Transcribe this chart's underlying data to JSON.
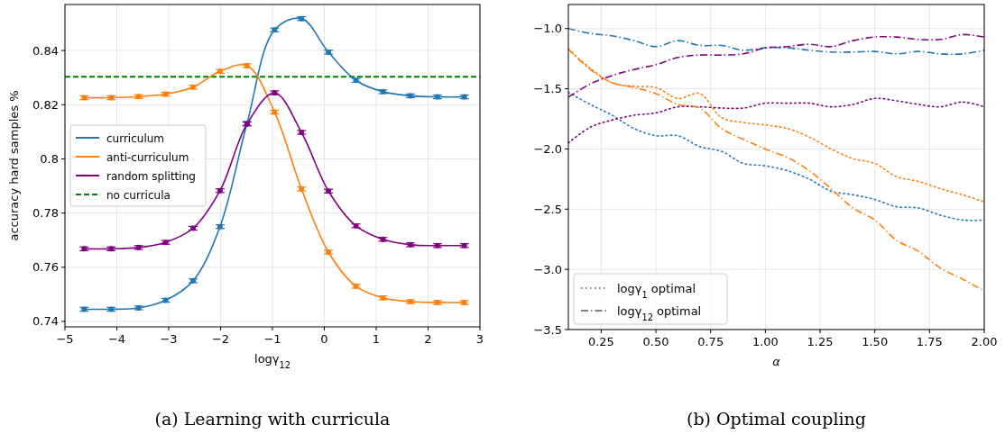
{
  "chart_data": [
    {
      "type": "line",
      "title": "(a) Learning with curricula",
      "xlabel": "logγ$_{12}$",
      "ylabel": "accuracy hard samples %",
      "xlim": [
        -5,
        3
      ],
      "ylim": [
        0.738,
        0.857
      ],
      "xticks": [
        {
          "value": -5,
          "label": "−5"
        },
        {
          "value": -4,
          "label": "−4"
        },
        {
          "value": -3,
          "label": "−3"
        },
        {
          "value": -2,
          "label": "−2"
        },
        {
          "value": -1,
          "label": "−1"
        },
        0,
        1,
        2,
        3
      ],
      "yticks": [
        0.74,
        0.76,
        0.78,
        0.8,
        0.82,
        0.84
      ],
      "grid": true,
      "legend": "center left",
      "marker": "circle",
      "line_style": "solid",
      "x": [
        -4.63,
        -4.11,
        -3.58,
        -3.06,
        -2.53,
        -2.01,
        -1.49,
        -0.96,
        -0.44,
        0.08,
        0.61,
        1.13,
        1.66,
        2.18,
        2.7
      ],
      "series": [
        {
          "name": "curriculum",
          "color": "#1f77b4",
          "values": [
            0.7445,
            0.7445,
            0.745,
            0.7478,
            0.755,
            0.775,
            0.8131,
            0.8476,
            0.8518,
            0.8394,
            0.829,
            0.8248,
            0.8233,
            0.8229,
            0.8229
          ],
          "errors": [
            0.0007,
            0.0007,
            0.0007,
            0.0007,
            0.0007,
            0.0007,
            0.0007,
            0.0007,
            0.0007,
            0.0007,
            0.0007,
            0.0007,
            0.0007,
            0.0007,
            0.0007
          ]
        },
        {
          "name": "anti-curriculum",
          "color": "#ff7f0e",
          "values": [
            0.8226,
            0.8226,
            0.823,
            0.8239,
            0.8265,
            0.8323,
            0.8344,
            0.8173,
            0.7889,
            0.7656,
            0.753,
            0.7487,
            0.7473,
            0.747,
            0.747
          ],
          "errors": [
            0.0007,
            0.0007,
            0.0007,
            0.0007,
            0.0007,
            0.0007,
            0.0007,
            0.0007,
            0.0007,
            0.0007,
            0.0007,
            0.0007,
            0.0007,
            0.0007,
            0.0007
          ]
        },
        {
          "name": "random splitting",
          "color": "#800080",
          "values": [
            0.7668,
            0.7668,
            0.7673,
            0.7692,
            0.7744,
            0.7883,
            0.8129,
            0.8244,
            0.8098,
            0.7881,
            0.7753,
            0.7703,
            0.7683,
            0.768,
            0.768
          ],
          "errors": [
            0.0007,
            0.0007,
            0.0007,
            0.0007,
            0.0007,
            0.0007,
            0.0007,
            0.0007,
            0.0007,
            0.0007,
            0.0007,
            0.0007,
            0.0007,
            0.0007,
            0.0007
          ]
        }
      ],
      "ref_lines": [
        {
          "axis": "y",
          "value": 0.8303,
          "label": "no curricula",
          "color": "#008000",
          "line_style": "dashed"
        }
      ]
    },
    {
      "type": "line",
      "title": "(b) Optimal coupling",
      "xlabel": "α",
      "xlim": [
        0.1,
        2.0
      ],
      "ylim": [
        -3.5,
        -0.8
      ],
      "annotations": [
        "logγ$_{1}$ optimal",
        "logγ$_{12}$ optimal"
      ],
      "xticks": [
        {
          "value": 0.25,
          "label": "0.25"
        },
        {
          "value": 0.5,
          "label": "0.50"
        },
        {
          "value": 0.75,
          "label": "0.75"
        },
        {
          "value": 1.0,
          "label": "1.00"
        },
        {
          "value": 1.25,
          "label": "1.25"
        },
        {
          "value": 1.5,
          "label": "1.50"
        },
        {
          "value": 1.75,
          "label": "1.75"
        },
        {
          "value": 2.0,
          "label": "2.00"
        }
      ],
      "yticks": [
        {
          "value": -1.0,
          "label": "−1.0"
        },
        {
          "value": -1.5,
          "label": "−1.5"
        },
        {
          "value": -2.0,
          "label": "−2.0"
        },
        {
          "value": -2.5,
          "label": "−2.5"
        },
        {
          "value": -3.0,
          "label": "−3.0"
        },
        {
          "value": -3.5,
          "label": "−3.5"
        }
      ],
      "grid": true,
      "marker": "none",
      "x": [
        0.1,
        0.2,
        0.3,
        0.4,
        0.5,
        0.6,
        0.7,
        0.8,
        0.9,
        1.0,
        1.1,
        1.2,
        1.3,
        1.4,
        1.5,
        1.6,
        1.7,
        1.8,
        1.9,
        2.0
      ],
      "series": [
        {
          "color": "#1f77b4",
          "line_style": "dotted",
          "values": [
            -1.53,
            -1.63,
            -1.72,
            -1.83,
            -1.89,
            -1.89,
            -1.98,
            -2.02,
            -2.12,
            -2.14,
            -2.18,
            -2.25,
            -2.35,
            -2.38,
            -2.42,
            -2.48,
            -2.49,
            -2.55,
            -2.59,
            -2.59
          ]
        },
        {
          "color": "#ff7f0e",
          "line_style": "dotted",
          "values": [
            -1.17,
            -1.33,
            -1.45,
            -1.48,
            -1.49,
            -1.58,
            -1.54,
            -1.74,
            -1.78,
            -1.8,
            -1.83,
            -1.9,
            -2.0,
            -2.08,
            -2.12,
            -2.23,
            -2.27,
            -2.33,
            -2.38,
            -2.44
          ]
        },
        {
          "color": "#800080",
          "line_style": "dotted",
          "values": [
            -1.95,
            -1.82,
            -1.76,
            -1.72,
            -1.7,
            -1.65,
            -1.65,
            -1.66,
            -1.66,
            -1.62,
            -1.62,
            -1.62,
            -1.65,
            -1.63,
            -1.58,
            -1.6,
            -1.63,
            -1.65,
            -1.61,
            -1.65
          ]
        },
        {
          "color": "#1f77b4",
          "line_style": "dashdot",
          "values": [
            -1.0,
            -1.04,
            -1.06,
            -1.1,
            -1.15,
            -1.1,
            -1.14,
            -1.14,
            -1.18,
            -1.16,
            -1.16,
            -1.18,
            -1.195,
            -1.195,
            -1.19,
            -1.21,
            -1.19,
            -1.21,
            -1.21,
            -1.18
          ]
        },
        {
          "color": "#ff7f0e",
          "line_style": "dashdot",
          "values": [
            -1.17,
            -1.34,
            -1.45,
            -1.49,
            -1.54,
            -1.63,
            -1.66,
            -1.83,
            -1.92,
            -2.0,
            -2.07,
            -2.18,
            -2.33,
            -2.49,
            -2.59,
            -2.76,
            -2.85,
            -2.99,
            -3.08,
            -3.18
          ]
        },
        {
          "color": "#800080",
          "line_style": "dashdot",
          "values": [
            -1.57,
            -1.46,
            -1.39,
            -1.34,
            -1.3,
            -1.24,
            -1.22,
            -1.22,
            -1.21,
            -1.16,
            -1.15,
            -1.13,
            -1.15,
            -1.1,
            -1.07,
            -1.07,
            -1.09,
            -1.09,
            -1.05,
            -1.07
          ]
        }
      ]
    }
  ]
}
